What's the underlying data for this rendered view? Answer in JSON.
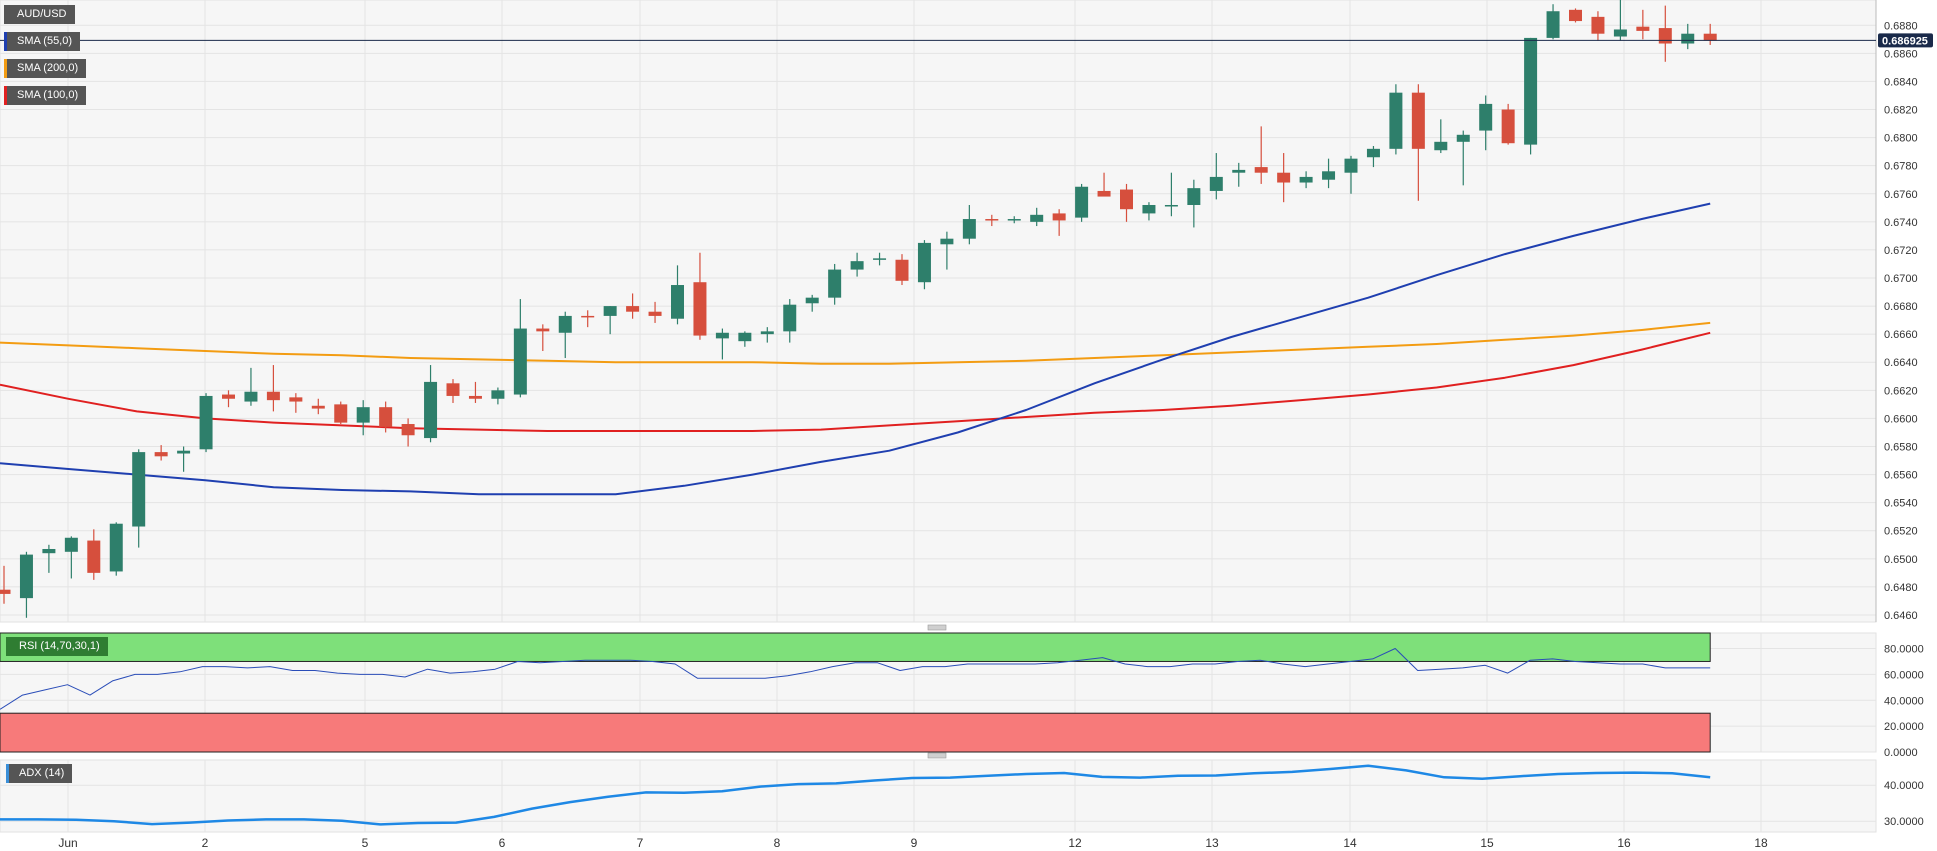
{
  "chart_data": [
    {
      "type": "candlestick",
      "title": "AUD/USD",
      "legend": [
        {
          "label": "AUD/USD",
          "color": "#555555"
        },
        {
          "label": "SMA (55,0)",
          "color": "#1f3fb0"
        },
        {
          "label": "SMA (200,0)",
          "color": "#f39c12"
        },
        {
          "label": "SMA (100,0)",
          "color": "#e02020"
        }
      ],
      "current_price": "0.686925",
      "ylim": [
        0.6455,
        0.6898
      ],
      "y_ticks": [
        "0.6880",
        "0.6860",
        "0.6840",
        "0.6820",
        "0.6800",
        "0.6780",
        "0.6760",
        "0.6740",
        "0.6720",
        "0.6700",
        "0.6680",
        "0.6660",
        "0.6640",
        "0.6620",
        "0.6600",
        "0.6580",
        "0.6560",
        "0.6540",
        "0.6520",
        "0.6500",
        "0.6480",
        "0.6460"
      ],
      "x_ticks": [
        "Jun",
        "2",
        "5",
        "6",
        "7",
        "8",
        "9",
        "12",
        "13",
        "14",
        "15",
        "16",
        "18"
      ],
      "candles": [
        {
          "o": 0.6478,
          "h": 0.6495,
          "l": 0.6468,
          "c": 0.6475
        },
        {
          "o": 0.6472,
          "h": 0.6505,
          "l": 0.6458,
          "c": 0.6503
        },
        {
          "o": 0.6504,
          "h": 0.651,
          "l": 0.649,
          "c": 0.6507
        },
        {
          "o": 0.6505,
          "h": 0.6516,
          "l": 0.6486,
          "c": 0.6515
        },
        {
          "o": 0.6513,
          "h": 0.6521,
          "l": 0.6485,
          "c": 0.649
        },
        {
          "o": 0.6491,
          "h": 0.6526,
          "l": 0.6488,
          "c": 0.6525
        },
        {
          "o": 0.6523,
          "h": 0.6578,
          "l": 0.6508,
          "c": 0.6576
        },
        {
          "o": 0.6576,
          "h": 0.6581,
          "l": 0.657,
          "c": 0.6573
        },
        {
          "o": 0.6575,
          "h": 0.658,
          "l": 0.6562,
          "c": 0.6577
        },
        {
          "o": 0.6578,
          "h": 0.6618,
          "l": 0.6576,
          "c": 0.6616
        },
        {
          "o": 0.6617,
          "h": 0.662,
          "l": 0.6608,
          "c": 0.6614
        },
        {
          "o": 0.6612,
          "h": 0.6636,
          "l": 0.6609,
          "c": 0.6619
        },
        {
          "o": 0.6619,
          "h": 0.6638,
          "l": 0.6605,
          "c": 0.6613
        },
        {
          "o": 0.6615,
          "h": 0.6618,
          "l": 0.6604,
          "c": 0.6612
        },
        {
          "o": 0.6609,
          "h": 0.6614,
          "l": 0.6603,
          "c": 0.6607
        },
        {
          "o": 0.661,
          "h": 0.6612,
          "l": 0.6596,
          "c": 0.6597
        },
        {
          "o": 0.6597,
          "h": 0.6613,
          "l": 0.6588,
          "c": 0.6608
        },
        {
          "o": 0.6608,
          "h": 0.6612,
          "l": 0.659,
          "c": 0.6594
        },
        {
          "o": 0.6596,
          "h": 0.66,
          "l": 0.658,
          "c": 0.6588
        },
        {
          "o": 0.6586,
          "h": 0.6638,
          "l": 0.6583,
          "c": 0.6626
        },
        {
          "o": 0.6625,
          "h": 0.6628,
          "l": 0.6611,
          "c": 0.6616
        },
        {
          "o": 0.6616,
          "h": 0.6626,
          "l": 0.6611,
          "c": 0.6614
        },
        {
          "o": 0.6614,
          "h": 0.6622,
          "l": 0.661,
          "c": 0.662
        },
        {
          "o": 0.6617,
          "h": 0.6685,
          "l": 0.6615,
          "c": 0.6664
        },
        {
          "o": 0.6664,
          "h": 0.6667,
          "l": 0.6648,
          "c": 0.6662
        },
        {
          "o": 0.6661,
          "h": 0.6676,
          "l": 0.6643,
          "c": 0.6673
        },
        {
          "o": 0.6673,
          "h": 0.6677,
          "l": 0.6665,
          "c": 0.6672
        },
        {
          "o": 0.6673,
          "h": 0.668,
          "l": 0.666,
          "c": 0.668
        },
        {
          "o": 0.668,
          "h": 0.6689,
          "l": 0.6671,
          "c": 0.6676
        },
        {
          "o": 0.6676,
          "h": 0.6683,
          "l": 0.6668,
          "c": 0.6673
        },
        {
          "o": 0.6671,
          "h": 0.6709,
          "l": 0.6667,
          "c": 0.6695
        },
        {
          "o": 0.6697,
          "h": 0.6718,
          "l": 0.6656,
          "c": 0.6659
        },
        {
          "o": 0.6657,
          "h": 0.6664,
          "l": 0.6642,
          "c": 0.6661
        },
        {
          "o": 0.6655,
          "h": 0.6662,
          "l": 0.6651,
          "c": 0.6661
        },
        {
          "o": 0.666,
          "h": 0.6665,
          "l": 0.6654,
          "c": 0.6662
        },
        {
          "o": 0.6662,
          "h": 0.6685,
          "l": 0.6654,
          "c": 0.6681
        },
        {
          "o": 0.6682,
          "h": 0.6688,
          "l": 0.6676,
          "c": 0.6686
        },
        {
          "o": 0.6686,
          "h": 0.671,
          "l": 0.6681,
          "c": 0.6706
        },
        {
          "o": 0.6706,
          "h": 0.6718,
          "l": 0.6701,
          "c": 0.6712
        },
        {
          "o": 0.6713,
          "h": 0.6718,
          "l": 0.6709,
          "c": 0.6714
        },
        {
          "o": 0.6713,
          "h": 0.6717,
          "l": 0.6695,
          "c": 0.6698
        },
        {
          "o": 0.6697,
          "h": 0.6727,
          "l": 0.6692,
          "c": 0.6725
        },
        {
          "o": 0.6724,
          "h": 0.6733,
          "l": 0.6706,
          "c": 0.6728
        },
        {
          "o": 0.6728,
          "h": 0.6752,
          "l": 0.6724,
          "c": 0.6742
        },
        {
          "o": 0.6742,
          "h": 0.6745,
          "l": 0.6737,
          "c": 0.6741
        },
        {
          "o": 0.6741,
          "h": 0.6744,
          "l": 0.6739,
          "c": 0.6742
        },
        {
          "o": 0.674,
          "h": 0.675,
          "l": 0.6737,
          "c": 0.6745
        },
        {
          "o": 0.6746,
          "h": 0.6749,
          "l": 0.673,
          "c": 0.6741
        },
        {
          "o": 0.6743,
          "h": 0.6767,
          "l": 0.674,
          "c": 0.6765
        },
        {
          "o": 0.6762,
          "h": 0.6775,
          "l": 0.6759,
          "c": 0.6758
        },
        {
          "o": 0.6763,
          "h": 0.6767,
          "l": 0.674,
          "c": 0.6749
        },
        {
          "o": 0.6746,
          "h": 0.6754,
          "l": 0.6741,
          "c": 0.6752
        },
        {
          "o": 0.6752,
          "h": 0.6775,
          "l": 0.6744,
          "c": 0.6752
        },
        {
          "o": 0.6752,
          "h": 0.677,
          "l": 0.6736,
          "c": 0.6764
        },
        {
          "o": 0.6762,
          "h": 0.6789,
          "l": 0.6756,
          "c": 0.6772
        },
        {
          "o": 0.6775,
          "h": 0.6782,
          "l": 0.6765,
          "c": 0.6777
        },
        {
          "o": 0.6779,
          "h": 0.6808,
          "l": 0.6767,
          "c": 0.6775
        },
        {
          "o": 0.6775,
          "h": 0.6789,
          "l": 0.6754,
          "c": 0.6768
        },
        {
          "o": 0.6768,
          "h": 0.6776,
          "l": 0.6764,
          "c": 0.6772
        },
        {
          "o": 0.677,
          "h": 0.6785,
          "l": 0.6764,
          "c": 0.6776
        },
        {
          "o": 0.6775,
          "h": 0.6787,
          "l": 0.676,
          "c": 0.6785
        },
        {
          "o": 0.6786,
          "h": 0.6794,
          "l": 0.6779,
          "c": 0.6792
        },
        {
          "o": 0.6792,
          "h": 0.6838,
          "l": 0.6788,
          "c": 0.6832
        },
        {
          "o": 0.6832,
          "h": 0.6838,
          "l": 0.6755,
          "c": 0.6792
        },
        {
          "o": 0.6791,
          "h": 0.6813,
          "l": 0.6789,
          "c": 0.6797
        },
        {
          "o": 0.6797,
          "h": 0.6805,
          "l": 0.6766,
          "c": 0.6802
        },
        {
          "o": 0.6805,
          "h": 0.683,
          "l": 0.6791,
          "c": 0.6824
        },
        {
          "o": 0.682,
          "h": 0.6824,
          "l": 0.6795,
          "c": 0.6796
        },
        {
          "o": 0.6795,
          "h": 0.6871,
          "l": 0.6788,
          "c": 0.6871
        },
        {
          "o": 0.6871,
          "h": 0.6895,
          "l": 0.687,
          "c": 0.689
        },
        {
          "o": 0.6891,
          "h": 0.6892,
          "l": 0.6882,
          "c": 0.6883
        },
        {
          "o": 0.6886,
          "h": 0.689,
          "l": 0.6869,
          "c": 0.6874
        },
        {
          "o": 0.6872,
          "h": 0.6901,
          "l": 0.6869,
          "c": 0.6877
        },
        {
          "o": 0.6879,
          "h": 0.6891,
          "l": 0.687,
          "c": 0.6876
        },
        {
          "o": 0.6878,
          "h": 0.6894,
          "l": 0.6854,
          "c": 0.6867
        },
        {
          "o": 0.6867,
          "h": 0.6881,
          "l": 0.6863,
          "c": 0.6874
        },
        {
          "o": 0.6874,
          "h": 0.6881,
          "l": 0.6866,
          "c": 0.6869
        }
      ],
      "sma55": [
        0.6568,
        0.6564,
        0.656,
        0.6556,
        0.6551,
        0.6549,
        0.6548,
        0.6546,
        0.6546,
        0.6546,
        0.6552,
        0.656,
        0.6569,
        0.6577,
        0.659,
        0.6606,
        0.6625,
        0.6642,
        0.6658,
        0.6672,
        0.6686,
        0.6702,
        0.6717,
        0.673,
        0.6742,
        0.6753
      ],
      "sma200": [
        0.6654,
        0.6652,
        0.665,
        0.6648,
        0.6646,
        0.6645,
        0.6643,
        0.6642,
        0.6641,
        0.664,
        0.664,
        0.664,
        0.6639,
        0.6639,
        0.664,
        0.6641,
        0.6643,
        0.6645,
        0.6647,
        0.6649,
        0.6651,
        0.6653,
        0.6656,
        0.6659,
        0.6663,
        0.6668
      ],
      "sma100": [
        0.6624,
        0.6614,
        0.6605,
        0.66,
        0.6597,
        0.6595,
        0.6593,
        0.6592,
        0.6591,
        0.6591,
        0.6591,
        0.6591,
        0.6592,
        0.6595,
        0.6598,
        0.6601,
        0.6604,
        0.6606,
        0.6609,
        0.6613,
        0.6617,
        0.6622,
        0.6629,
        0.6638,
        0.6649,
        0.6661
      ]
    },
    {
      "type": "line",
      "title": "RSI (14,70,30,1)",
      "ylim": [
        0,
        92
      ],
      "y_ticks": [
        "80.0000",
        "60.0000",
        "40.0000",
        "20.0000",
        "0.0000"
      ],
      "overbought": 70,
      "oversold": 30,
      "values": [
        33,
        44,
        48,
        52,
        44,
        55,
        60,
        60,
        62,
        66,
        66,
        65,
        66,
        63,
        63,
        61,
        60,
        60,
        58,
        64,
        61,
        62,
        64,
        70,
        69,
        70,
        71,
        71,
        71,
        70,
        68,
        57,
        57,
        57,
        57,
        59,
        62,
        66,
        69,
        69,
        63,
        66,
        66,
        68,
        68,
        68,
        68,
        69,
        71,
        73,
        68,
        66,
        66,
        68,
        68,
        70,
        71,
        68,
        66,
        68,
        70,
        72,
        80,
        63,
        64,
        65,
        67,
        61,
        71,
        72,
        70,
        69,
        68,
        68,
        65,
        65,
        65
      ]
    },
    {
      "type": "line",
      "title": "ADX (14)",
      "ylim": [
        27,
        47
      ],
      "y_ticks": [
        "40.0000",
        "30.0000"
      ],
      "values": [
        30.5,
        30.5,
        30.4,
        30.0,
        29.2,
        29.6,
        30.2,
        30.5,
        30.5,
        30.1,
        29.1,
        29.5,
        29.6,
        31.2,
        33.5,
        35.3,
        36.8,
        38.0,
        37.9,
        38.3,
        39.6,
        40.3,
        40.5,
        41.3,
        42.0,
        42.1,
        42.6,
        43.1,
        43.4,
        42.3,
        42.1,
        42.6,
        42.7,
        43.3,
        43.7,
        44.5,
        45.4,
        44.1,
        42.2,
        41.8,
        42.5,
        43.1,
        43.4,
        43.5,
        43.3,
        42.2
      ]
    }
  ]
}
